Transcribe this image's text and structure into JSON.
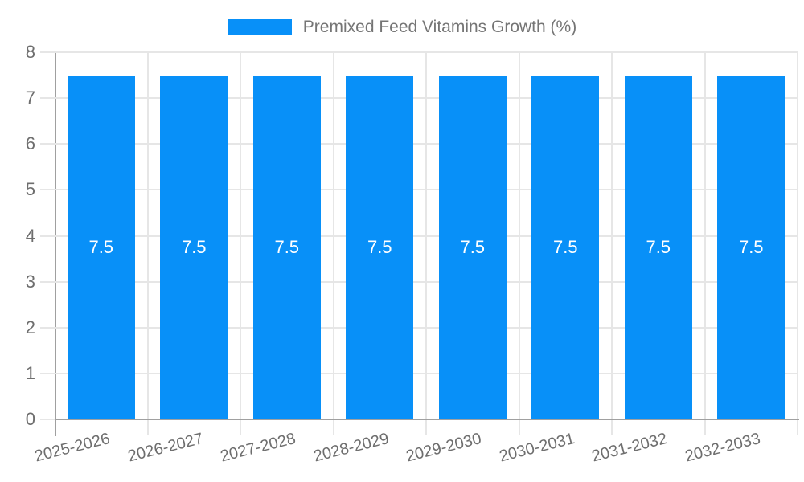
{
  "chart_data": {
    "type": "bar",
    "title": "Premixed Feed Vitamins Growth (%)",
    "xlabel": "",
    "ylabel": "",
    "categories": [
      "2025-2026",
      "2026-2027",
      "2027-2028",
      "2028-2029",
      "2029-2030",
      "2030-2031",
      "2031-2032",
      "2032-2033"
    ],
    "series": [
      {
        "name": "Premixed Feed Vitamins Growth (%)",
        "values": [
          7.5,
          7.5,
          7.5,
          7.5,
          7.5,
          7.5,
          7.5,
          7.5
        ]
      }
    ],
    "bar_labels": [
      "7.5",
      "7.5",
      "7.5",
      "7.5",
      "7.5",
      "7.5",
      "7.5",
      "7.5"
    ],
    "ylim": [
      0,
      8
    ],
    "y_ticks": [
      0,
      1,
      2,
      3,
      4,
      5,
      6,
      7,
      8
    ],
    "grid": true,
    "legend_position": "top",
    "x_label_rotation_deg": -14,
    "colors": {
      "bar": "#0890f8",
      "bar_label": "#ffffff",
      "axis_text": "#6e6e6e",
      "legend_text": "#757575",
      "gridline": "#e6e6e6",
      "axis_line": "#a0a0a0",
      "background": "#ffffff"
    }
  }
}
